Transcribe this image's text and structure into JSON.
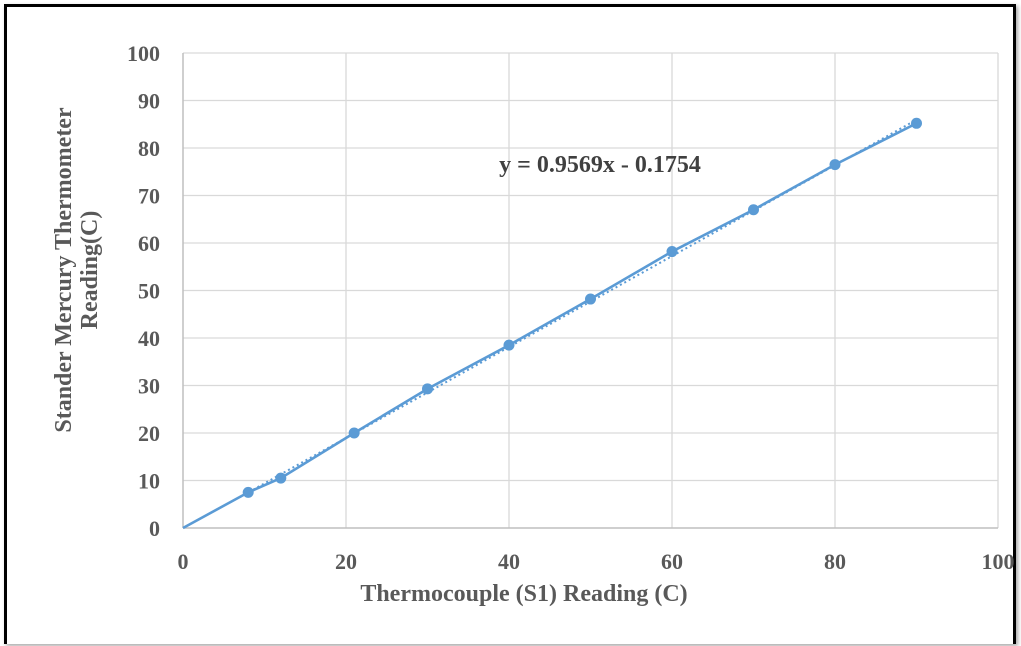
{
  "chart_data": {
    "type": "scatter",
    "x": [
      8,
      12,
      21,
      30,
      40,
      50,
      60,
      70,
      80,
      90
    ],
    "y": [
      7.5,
      10.5,
      20,
      29.3,
      38.5,
      48.2,
      58.2,
      67,
      76.5,
      85.2
    ],
    "xlabel": "Thermocouple (S1) Reading (C)",
    "ylabel_lines": [
      "Stander Mercury Thermometer",
      "Reading(C)"
    ],
    "xlim": [
      0,
      100
    ],
    "ylim": [
      0,
      100
    ],
    "xticks": [
      0,
      20,
      40,
      60,
      80,
      100
    ],
    "yticks": [
      0,
      10,
      20,
      30,
      40,
      50,
      60,
      70,
      80,
      90,
      100
    ],
    "grid": true,
    "trendline": {
      "type": "linear",
      "slope": 0.9569,
      "intercept": -0.1754,
      "label": "y = 0.9569x - 0.1754",
      "style": "dotted"
    },
    "series_color": "#5b9bd5",
    "grid_color": "#d9d9d9"
  }
}
